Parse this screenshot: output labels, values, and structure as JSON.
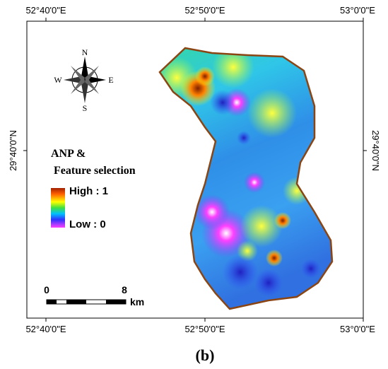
{
  "frame": {
    "top_labels": [
      "52°40'0\"E",
      "52°50'0\"E",
      "53°0'0\"E"
    ],
    "bottom_labels": [
      "52°40'0\"E",
      "52°50'0\"E",
      "53°0'0\"E"
    ],
    "left_label": "29°40'0\"N",
    "right_label": "29°40'0\"N"
  },
  "compass": {
    "n": "N",
    "s": "S",
    "e": "E",
    "w": "W"
  },
  "legend": {
    "title_line1": "ANP &",
    "title_line2": "Feature selection",
    "high": "High : 1",
    "low": "Low : 0"
  },
  "scale": {
    "start": "0",
    "end": "8",
    "unit": "km"
  },
  "caption": "(b)"
}
